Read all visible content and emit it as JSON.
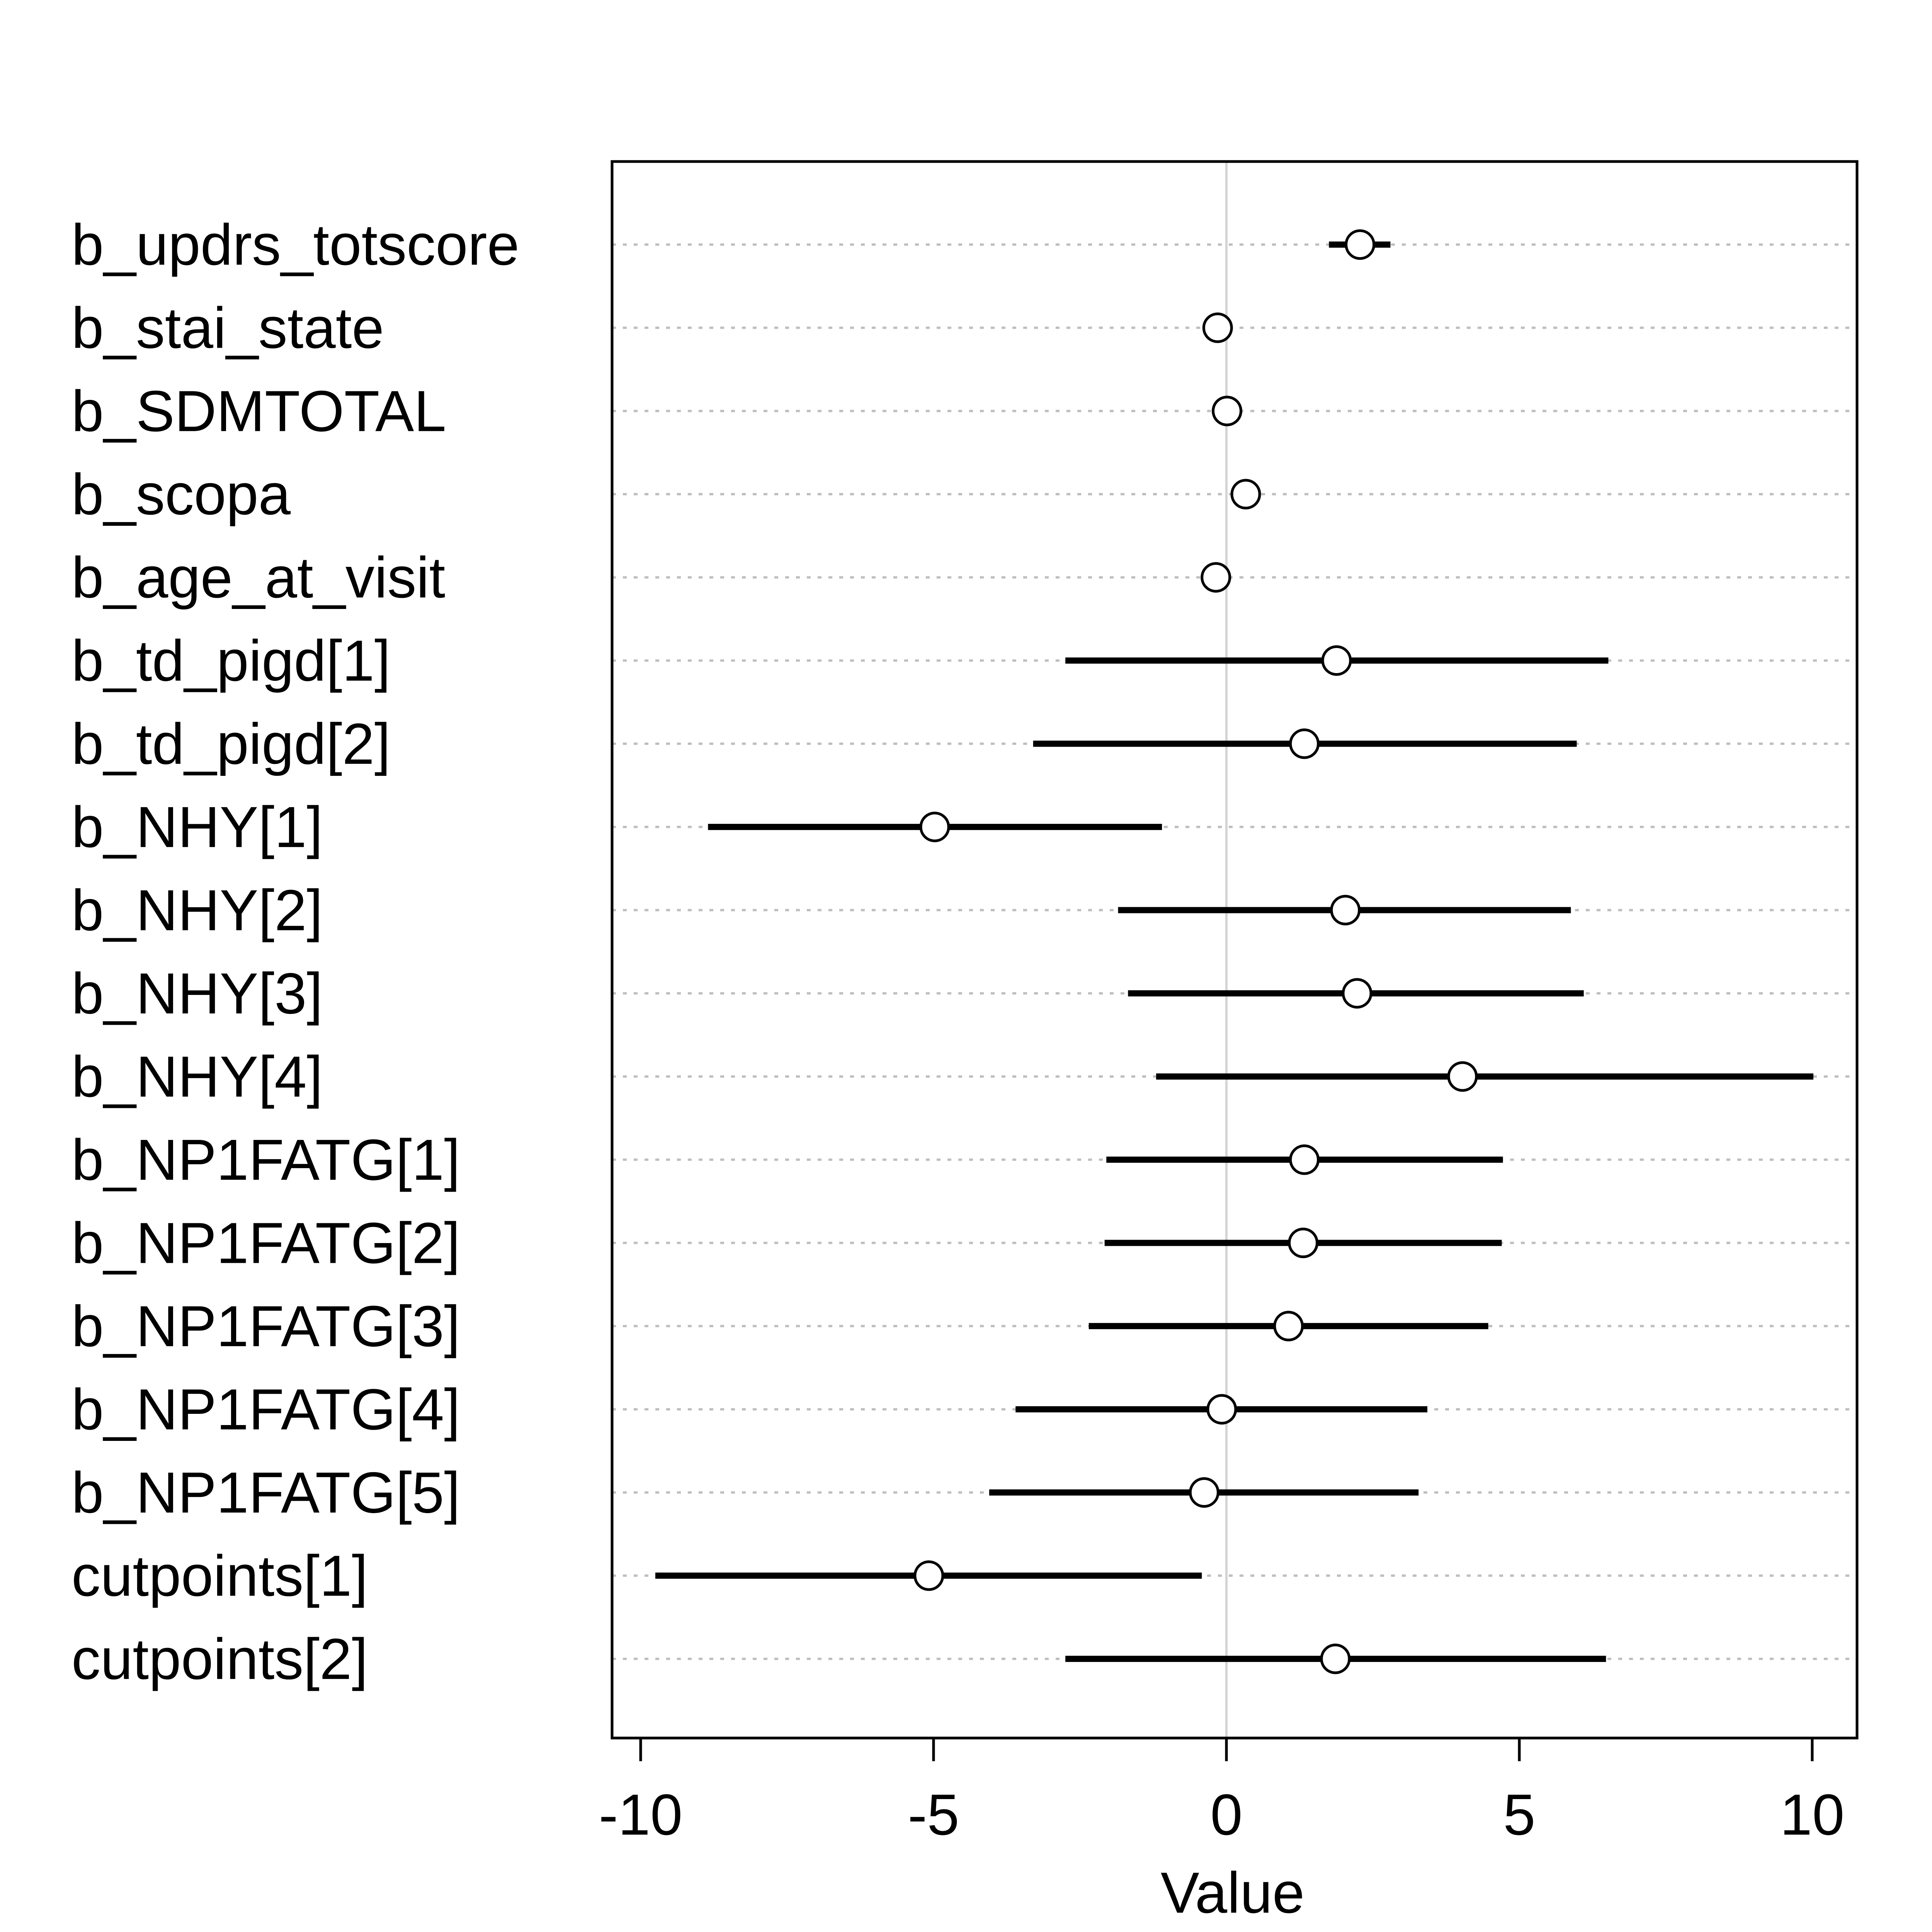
{
  "chart_data": {
    "type": "scatter",
    "subtype": "interval-dotplot",
    "title": "",
    "xlabel": "Value",
    "ylabel": "",
    "xlim": [
      -10.5,
      10.8
    ],
    "xticks": [
      -10,
      -5,
      0,
      5,
      10
    ],
    "xtick_labels": [
      "-10",
      "-5",
      "0",
      "5",
      "10"
    ],
    "reference_line": 0,
    "grid": "horizontal dotted",
    "legend": "none",
    "colors": {
      "marks": "#000000",
      "gridline": "#bebebe",
      "reference_line": "#d3d3d3",
      "frame": "#000000"
    },
    "series": [
      {
        "label": "b_updrs_totscore",
        "mean": 2.28,
        "lower": 1.75,
        "upper": 2.8
      },
      {
        "label": "b_stai_state",
        "mean": -0.15,
        "lower": -0.35,
        "upper": 0.07
      },
      {
        "label": "b_SDMTOTAL",
        "mean": 0.01,
        "lower": -0.2,
        "upper": 0.22
      },
      {
        "label": "b_scopa",
        "mean": 0.33,
        "lower": 0.1,
        "upper": 0.55
      },
      {
        "label": "b_age_at_visit",
        "mean": -0.18,
        "lower": -0.4,
        "upper": 0.05
      },
      {
        "label": "b_td_pigd[1]",
        "mean": 1.88,
        "lower": -2.75,
        "upper": 6.52
      },
      {
        "label": "b_td_pigd[2]",
        "mean": 1.33,
        "lower": -3.3,
        "upper": 5.98
      },
      {
        "label": "b_NHY[1]",
        "mean": -4.98,
        "lower": -8.85,
        "upper": -1.1
      },
      {
        "label": "b_NHY[2]",
        "mean": 2.03,
        "lower": -1.85,
        "upper": 5.88
      },
      {
        "label": "b_NHY[3]",
        "mean": 2.23,
        "lower": -1.68,
        "upper": 6.1
      },
      {
        "label": "b_NHY[4]",
        "mean": 4.03,
        "lower": -1.2,
        "upper": 10.02
      },
      {
        "label": "b_NP1FATG[1]",
        "mean": 1.33,
        "lower": -2.05,
        "upper": 4.72
      },
      {
        "label": "b_NP1FATG[2]",
        "mean": 1.31,
        "lower": -2.08,
        "upper": 4.7
      },
      {
        "label": "b_NP1FATG[3]",
        "mean": 1.06,
        "lower": -2.35,
        "upper": 4.47
      },
      {
        "label": "b_NP1FATG[4]",
        "mean": -0.08,
        "lower": -3.6,
        "upper": 3.43
      },
      {
        "label": "b_NP1FATG[5]",
        "mean": -0.38,
        "lower": -4.05,
        "upper": 3.28
      },
      {
        "label": "cutpoints[1]",
        "mean": -5.08,
        "lower": -9.75,
        "upper": -0.42
      },
      {
        "label": "cutpoints[2]",
        "mean": 1.86,
        "lower": -2.75,
        "upper": 6.48
      }
    ]
  }
}
